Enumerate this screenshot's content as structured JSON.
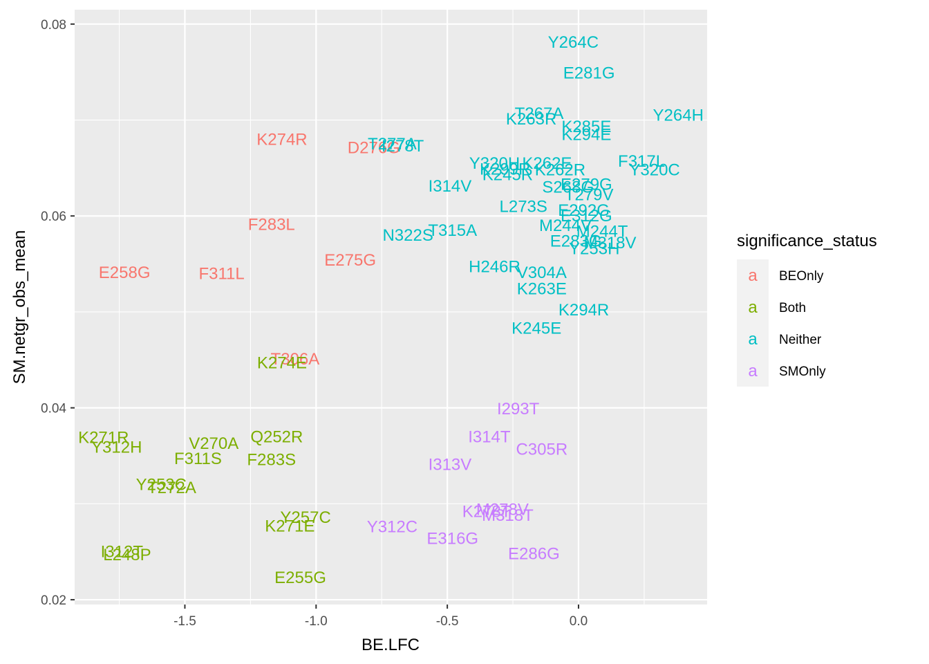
{
  "chart_data": {
    "type": "scatter",
    "xlabel": "BE.LFC",
    "ylabel": "SM.netgr_obs_mean",
    "xlim": [
      -1.92,
      0.49
    ],
    "ylim": [
      0.0195,
      0.0815
    ],
    "x_ticks": [
      -1.5,
      -1.0,
      -0.5,
      0.0
    ],
    "x_tick_labels": [
      "-1.5",
      "-1.0",
      "-0.5",
      "0.0"
    ],
    "y_ticks": [
      0.02,
      0.04,
      0.06,
      0.08
    ],
    "y_tick_labels": [
      "0.02",
      "0.04",
      "0.06",
      "0.08"
    ],
    "grid": true,
    "legend": {
      "title": "significance_status",
      "position": "right",
      "key_glyph": "a",
      "entries": [
        {
          "name": "BEOnly",
          "color": "#F8766D"
        },
        {
          "name": "Both",
          "color": "#7CAE00"
        },
        {
          "name": "Neither",
          "color": "#00BFC4"
        },
        {
          "name": "SMOnly",
          "color": "#C77CFF"
        }
      ]
    },
    "points": [
      {
        "label": "E258G",
        "x": -1.73,
        "y": 0.0541,
        "group": "BEOnly"
      },
      {
        "label": "F311L",
        "x": -1.36,
        "y": 0.054,
        "group": "BEOnly"
      },
      {
        "label": "F283L",
        "x": -1.17,
        "y": 0.0591,
        "group": "BEOnly"
      },
      {
        "label": "K274R",
        "x": -1.13,
        "y": 0.068,
        "group": "BEOnly"
      },
      {
        "label": "T306A",
        "x": -1.08,
        "y": 0.0451,
        "group": "BEOnly"
      },
      {
        "label": "E275G",
        "x": -0.87,
        "y": 0.0554,
        "group": "BEOnly"
      },
      {
        "label": "D276G",
        "x": -0.78,
        "y": 0.0671,
        "group": "BEOnly"
      },
      {
        "label": "K271R",
        "x": -1.81,
        "y": 0.0369,
        "group": "Both"
      },
      {
        "label": "Y312H",
        "x": -1.76,
        "y": 0.0359,
        "group": "Both"
      },
      {
        "label": "V270A",
        "x": -1.39,
        "y": 0.0363,
        "group": "Both"
      },
      {
        "label": "Q252R",
        "x": -1.15,
        "y": 0.037,
        "group": "Both"
      },
      {
        "label": "F311S",
        "x": -1.45,
        "y": 0.0347,
        "group": "Both"
      },
      {
        "label": "F283S",
        "x": -1.17,
        "y": 0.0346,
        "group": "Both"
      },
      {
        "label": "Y253C",
        "x": -1.59,
        "y": 0.032,
        "group": "Both"
      },
      {
        "label": "T272A",
        "x": -1.55,
        "y": 0.0317,
        "group": "Both"
      },
      {
        "label": "K274E",
        "x": -1.13,
        "y": 0.0447,
        "group": "Both"
      },
      {
        "label": "Y257C",
        "x": -1.04,
        "y": 0.0286,
        "group": "Both"
      },
      {
        "label": "K271E",
        "x": -1.1,
        "y": 0.0277,
        "group": "Both"
      },
      {
        "label": "I312T",
        "x": -1.74,
        "y": 0.025,
        "group": "Both"
      },
      {
        "label": "L248P",
        "x": -1.72,
        "y": 0.0247,
        "group": "Both"
      },
      {
        "label": "E255G",
        "x": -1.06,
        "y": 0.0223,
        "group": "Both"
      },
      {
        "label": "Y264C",
        "x": -0.02,
        "y": 0.0781,
        "group": "Neither"
      },
      {
        "label": "E281G",
        "x": 0.04,
        "y": 0.0749,
        "group": "Neither"
      },
      {
        "label": "T267A",
        "x": -0.15,
        "y": 0.0707,
        "group": "Neither"
      },
      {
        "label": "K263R",
        "x": -0.18,
        "y": 0.0701,
        "group": "Neither"
      },
      {
        "label": "K285E",
        "x": 0.03,
        "y": 0.0693,
        "group": "Neither"
      },
      {
        "label": "Y264H",
        "x": 0.38,
        "y": 0.0705,
        "group": "Neither"
      },
      {
        "label": "K294E",
        "x": 0.03,
        "y": 0.0685,
        "group": "Neither"
      },
      {
        "label": "T277A",
        "x": -0.71,
        "y": 0.0675,
        "group": "Neither"
      },
      {
        "label": "I278T",
        "x": -0.67,
        "y": 0.0673,
        "group": "Neither"
      },
      {
        "label": "Y320H",
        "x": -0.32,
        "y": 0.0655,
        "group": "Neither"
      },
      {
        "label": "K262E",
        "x": -0.12,
        "y": 0.0655,
        "group": "Neither"
      },
      {
        "label": "K299R",
        "x": -0.28,
        "y": 0.0649,
        "group": "Neither"
      },
      {
        "label": "K262R",
        "x": -0.07,
        "y": 0.0648,
        "group": "Neither"
      },
      {
        "label": "K245R",
        "x": -0.27,
        "y": 0.0643,
        "group": "Neither"
      },
      {
        "label": "F317L",
        "x": 0.24,
        "y": 0.0657,
        "group": "Neither"
      },
      {
        "label": "Y320C",
        "x": 0.29,
        "y": 0.0648,
        "group": "Neither"
      },
      {
        "label": "I314V",
        "x": -0.49,
        "y": 0.0631,
        "group": "Neither"
      },
      {
        "label": "E279G",
        "x": 0.03,
        "y": 0.0633,
        "group": "Neither"
      },
      {
        "label": "S268G",
        "x": -0.04,
        "y": 0.063,
        "group": "Neither"
      },
      {
        "label": "T279V",
        "x": 0.04,
        "y": 0.0622,
        "group": "Neither"
      },
      {
        "label": "E292G",
        "x": 0.02,
        "y": 0.0606,
        "group": "Neither"
      },
      {
        "label": "L273S",
        "x": -0.21,
        "y": 0.061,
        "group": "Neither"
      },
      {
        "label": "E312G",
        "x": 0.03,
        "y": 0.06,
        "group": "Neither"
      },
      {
        "label": "N322S",
        "x": -0.65,
        "y": 0.058,
        "group": "Neither"
      },
      {
        "label": "T315A",
        "x": -0.48,
        "y": 0.0585,
        "group": "Neither"
      },
      {
        "label": "M244V",
        "x": -0.05,
        "y": 0.059,
        "group": "Neither"
      },
      {
        "label": "M244T",
        "x": 0.09,
        "y": 0.0584,
        "group": "Neither"
      },
      {
        "label": "E283G",
        "x": -0.01,
        "y": 0.0574,
        "group": "Neither"
      },
      {
        "label": "M318V",
        "x": 0.12,
        "y": 0.0572,
        "group": "Neither"
      },
      {
        "label": "Y253H",
        "x": 0.06,
        "y": 0.0566,
        "group": "Neither"
      },
      {
        "label": "H246R",
        "x": -0.32,
        "y": 0.0547,
        "group": "Neither"
      },
      {
        "label": "V304A",
        "x": -0.14,
        "y": 0.0541,
        "group": "Neither"
      },
      {
        "label": "K263E",
        "x": -0.14,
        "y": 0.0524,
        "group": "Neither"
      },
      {
        "label": "K294R",
        "x": 0.02,
        "y": 0.0502,
        "group": "Neither"
      },
      {
        "label": "K245E",
        "x": -0.16,
        "y": 0.0483,
        "group": "Neither"
      },
      {
        "label": "I293T",
        "x": -0.23,
        "y": 0.0399,
        "group": "SMOnly"
      },
      {
        "label": "I314T",
        "x": -0.34,
        "y": 0.037,
        "group": "SMOnly"
      },
      {
        "label": "C305R",
        "x": -0.14,
        "y": 0.0357,
        "group": "SMOnly"
      },
      {
        "label": "I313V",
        "x": -0.49,
        "y": 0.0341,
        "group": "SMOnly"
      },
      {
        "label": "M278V",
        "x": -0.29,
        "y": 0.0294,
        "group": "SMOnly"
      },
      {
        "label": "K278T",
        "x": -0.35,
        "y": 0.0292,
        "group": "SMOnly"
      },
      {
        "label": "M318T",
        "x": -0.27,
        "y": 0.0288,
        "group": "SMOnly"
      },
      {
        "label": "Y312C",
        "x": -0.71,
        "y": 0.0276,
        "group": "SMOnly"
      },
      {
        "label": "E316G",
        "x": -0.48,
        "y": 0.0264,
        "group": "SMOnly"
      },
      {
        "label": "E286G",
        "x": -0.17,
        "y": 0.0248,
        "group": "SMOnly"
      }
    ]
  }
}
